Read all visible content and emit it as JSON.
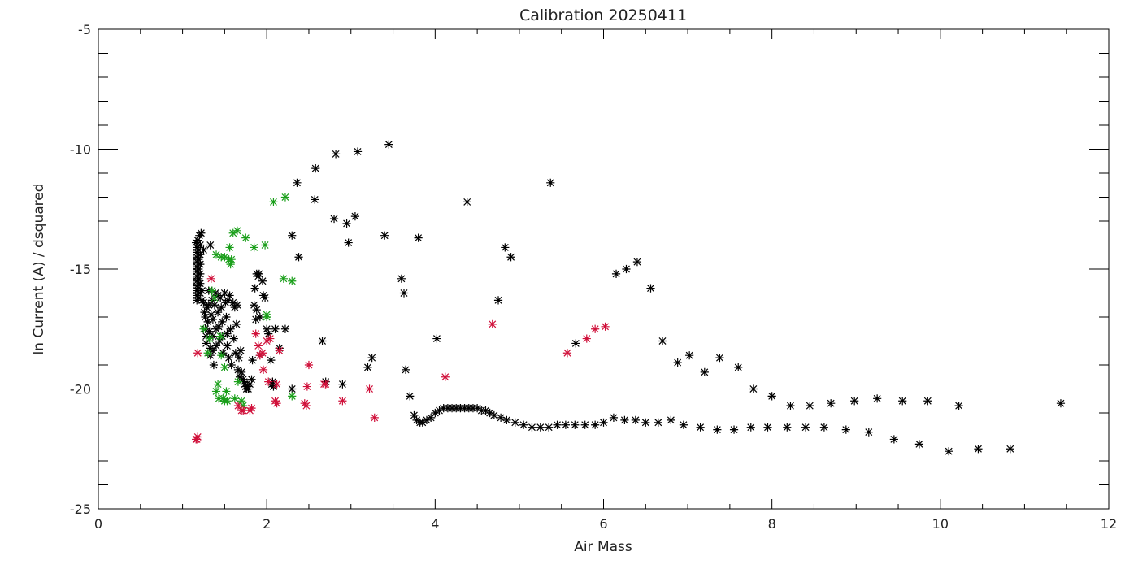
{
  "chart_data": {
    "type": "scatter",
    "title": "Calibration 20250411",
    "xlabel": "Air Mass",
    "ylabel": "ln Current (A) / dsquared",
    "xlim": [
      0,
      12
    ],
    "ylim": [
      -25,
      -5
    ],
    "x_ticks": [
      "0",
      "2",
      "4",
      "6",
      "8",
      "10",
      "12"
    ],
    "y_ticks": [
      "-25",
      "-20",
      "-15",
      "-10",
      "-5"
    ],
    "marker": "asterisk",
    "legend": "none",
    "colors": {
      "black": "#000000",
      "green": "#1a9f1a",
      "red": "#d0103a",
      "axes": "#000000"
    },
    "series": [
      {
        "color": "#000000",
        "points": [
          [
            1.16,
            -13.9
          ],
          [
            1.17,
            -14.1
          ],
          [
            1.17,
            -14.3
          ],
          [
            1.17,
            -14.5
          ],
          [
            1.17,
            -14.7
          ],
          [
            1.17,
            -14.9
          ],
          [
            1.17,
            -15.1
          ],
          [
            1.17,
            -15.3
          ],
          [
            1.17,
            -15.5
          ],
          [
            1.17,
            -15.7
          ],
          [
            1.17,
            -15.9
          ],
          [
            1.17,
            -16.1
          ],
          [
            1.17,
            -16.3
          ],
          [
            1.18,
            -13.8
          ],
          [
            1.19,
            -14.2
          ],
          [
            1.19,
            -14.6
          ],
          [
            1.19,
            -15.0
          ],
          [
            1.19,
            -15.4
          ],
          [
            1.19,
            -15.8
          ],
          [
            1.19,
            -16.2
          ],
          [
            1.2,
            -13.6
          ],
          [
            1.21,
            -14.0
          ],
          [
            1.21,
            -14.4
          ],
          [
            1.21,
            -14.8
          ],
          [
            1.21,
            -15.2
          ],
          [
            1.21,
            -15.6
          ],
          [
            1.21,
            -16.0
          ],
          [
            1.22,
            -13.5
          ],
          [
            1.23,
            -15.9
          ],
          [
            1.23,
            -16.3
          ],
          [
            1.25,
            -14.2
          ],
          [
            1.25,
            -16.4
          ],
          [
            1.26,
            -16.8
          ],
          [
            1.27,
            -17.0
          ],
          [
            1.27,
            -17.5
          ],
          [
            1.28,
            -17.8
          ],
          [
            1.28,
            -18.1
          ],
          [
            1.29,
            -16.6
          ],
          [
            1.3,
            -17.2
          ],
          [
            1.31,
            -15.9
          ],
          [
            1.31,
            -16.5
          ],
          [
            1.32,
            -17.6
          ],
          [
            1.33,
            -14.0
          ],
          [
            1.33,
            -18.3
          ],
          [
            1.33,
            -18.6
          ],
          [
            1.34,
            -16.9
          ],
          [
            1.35,
            -15.9
          ],
          [
            1.35,
            -16.3
          ],
          [
            1.36,
            -17.1
          ],
          [
            1.36,
            -17.8
          ],
          [
            1.36,
            -18.4
          ],
          [
            1.37,
            -19.0
          ],
          [
            1.38,
            -16.5
          ],
          [
            1.39,
            -16.0
          ],
          [
            1.4,
            -17.5
          ],
          [
            1.4,
            -18.2
          ],
          [
            1.42,
            -16.1
          ],
          [
            1.42,
            -16.8
          ],
          [
            1.43,
            -17.4
          ],
          [
            1.44,
            -18.0
          ],
          [
            1.45,
            -16.2
          ],
          [
            1.46,
            -16.6
          ],
          [
            1.47,
            -17.2
          ],
          [
            1.47,
            -17.8
          ],
          [
            1.48,
            -18.5
          ],
          [
            1.5,
            -16.0
          ],
          [
            1.51,
            -16.4
          ],
          [
            1.52,
            -17.0
          ],
          [
            1.53,
            -17.7
          ],
          [
            1.53,
            -18.2
          ],
          [
            1.54,
            -16.3
          ],
          [
            1.55,
            -18.7
          ],
          [
            1.56,
            -16.1
          ],
          [
            1.57,
            -17.5
          ],
          [
            1.58,
            -19.0
          ],
          [
            1.6,
            -16.4
          ],
          [
            1.61,
            -17.9
          ],
          [
            1.62,
            -16.6
          ],
          [
            1.63,
            -18.5
          ],
          [
            1.64,
            -17.3
          ],
          [
            1.65,
            -16.5
          ],
          [
            1.66,
            -19.2
          ],
          [
            1.67,
            -18.7
          ],
          [
            1.68,
            -19.5
          ],
          [
            1.69,
            -18.4
          ],
          [
            1.7,
            -19.3
          ],
          [
            1.72,
            -19.6
          ],
          [
            1.73,
            -19.7
          ],
          [
            1.74,
            -19.8
          ],
          [
            1.75,
            -19.9
          ],
          [
            1.76,
            -20.0
          ],
          [
            1.77,
            -19.9
          ],
          [
            1.78,
            -20.0
          ],
          [
            1.8,
            -19.8
          ],
          [
            1.82,
            -19.6
          ],
          [
            1.83,
            -18.8
          ],
          [
            1.85,
            -16.5
          ],
          [
            1.86,
            -15.8
          ],
          [
            1.87,
            -17.1
          ],
          [
            1.88,
            -16.7
          ],
          [
            1.88,
            -15.2
          ],
          [
            1.9,
            -15.3
          ],
          [
            1.91,
            -15.2
          ],
          [
            1.92,
            -17.0
          ],
          [
            1.92,
            -18.6
          ],
          [
            1.95,
            -15.5
          ],
          [
            1.96,
            -16.1
          ],
          [
            1.98,
            -16.2
          ],
          [
            2.0,
            -17.5
          ],
          [
            2.02,
            -17.7
          ],
          [
            2.05,
            -18.8
          ],
          [
            2.06,
            -19.8
          ],
          [
            2.07,
            -19.7
          ],
          [
            2.08,
            -19.9
          ],
          [
            2.1,
            -17.5
          ],
          [
            2.15,
            -18.3
          ],
          [
            2.22,
            -17.5
          ],
          [
            2.3,
            -13.6
          ],
          [
            2.3,
            -20.0
          ],
          [
            2.36,
            -11.4
          ],
          [
            2.38,
            -14.5
          ],
          [
            2.57,
            -12.1
          ],
          [
            2.58,
            -10.8
          ],
          [
            2.66,
            -18.0
          ],
          [
            2.7,
            -19.7
          ],
          [
            2.8,
            -12.9
          ],
          [
            2.82,
            -10.2
          ],
          [
            2.9,
            -19.8
          ],
          [
            2.95,
            -13.1
          ],
          [
            2.97,
            -13.9
          ],
          [
            3.05,
            -12.8
          ],
          [
            3.08,
            -10.1
          ],
          [
            3.2,
            -19.1
          ],
          [
            3.25,
            -18.7
          ],
          [
            3.4,
            -13.6
          ],
          [
            3.45,
            -9.8
          ],
          [
            3.6,
            -15.4
          ],
          [
            3.63,
            -16.0
          ],
          [
            3.65,
            -19.2
          ],
          [
            3.7,
            -20.3
          ],
          [
            3.75,
            -21.1
          ],
          [
            3.78,
            -21.3
          ],
          [
            3.8,
            -13.7
          ],
          [
            3.82,
            -21.4
          ],
          [
            3.85,
            -21.4
          ],
          [
            3.9,
            -21.3
          ],
          [
            3.95,
            -21.2
          ],
          [
            4.0,
            -21.0
          ],
          [
            4.02,
            -17.9
          ],
          [
            4.05,
            -20.9
          ],
          [
            4.1,
            -20.8
          ],
          [
            4.15,
            -20.8
          ],
          [
            4.2,
            -20.8
          ],
          [
            4.25,
            -20.8
          ],
          [
            4.3,
            -20.8
          ],
          [
            4.35,
            -20.8
          ],
          [
            4.38,
            -12.2
          ],
          [
            4.4,
            -20.8
          ],
          [
            4.45,
            -20.8
          ],
          [
            4.5,
            -20.8
          ],
          [
            4.55,
            -20.9
          ],
          [
            4.6,
            -20.9
          ],
          [
            4.65,
            -21.0
          ],
          [
            4.7,
            -21.1
          ],
          [
            4.75,
            -16.3
          ],
          [
            4.78,
            -21.2
          ],
          [
            4.83,
            -14.1
          ],
          [
            4.85,
            -21.3
          ],
          [
            4.9,
            -14.5
          ],
          [
            4.95,
            -21.4
          ],
          [
            5.05,
            -21.5
          ],
          [
            5.15,
            -21.6
          ],
          [
            5.25,
            -21.6
          ],
          [
            5.35,
            -21.6
          ],
          [
            5.37,
            -11.4
          ],
          [
            5.45,
            -21.5
          ],
          [
            5.55,
            -21.5
          ],
          [
            5.66,
            -21.5
          ],
          [
            5.67,
            -18.1
          ],
          [
            5.78,
            -21.5
          ],
          [
            5.9,
            -21.5
          ],
          [
            6.0,
            -21.4
          ],
          [
            6.12,
            -21.2
          ],
          [
            6.15,
            -15.2
          ],
          [
            6.25,
            -21.3
          ],
          [
            6.27,
            -15.0
          ],
          [
            6.38,
            -21.3
          ],
          [
            6.4,
            -14.7
          ],
          [
            6.5,
            -21.4
          ],
          [
            6.56,
            -15.8
          ],
          [
            6.65,
            -21.4
          ],
          [
            6.7,
            -18.0
          ],
          [
            6.8,
            -21.3
          ],
          [
            6.88,
            -18.9
          ],
          [
            6.95,
            -21.5
          ],
          [
            7.02,
            -18.6
          ],
          [
            7.15,
            -21.6
          ],
          [
            7.2,
            -19.3
          ],
          [
            7.35,
            -21.7
          ],
          [
            7.38,
            -18.7
          ],
          [
            7.55,
            -21.7
          ],
          [
            7.6,
            -19.1
          ],
          [
            7.75,
            -21.6
          ],
          [
            7.78,
            -20.0
          ],
          [
            7.95,
            -21.6
          ],
          [
            8.0,
            -20.3
          ],
          [
            8.18,
            -21.6
          ],
          [
            8.22,
            -20.7
          ],
          [
            8.4,
            -21.6
          ],
          [
            8.45,
            -20.7
          ],
          [
            8.62,
            -21.6
          ],
          [
            8.7,
            -20.6
          ],
          [
            8.88,
            -21.7
          ],
          [
            8.98,
            -20.5
          ],
          [
            9.15,
            -21.8
          ],
          [
            9.25,
            -20.4
          ],
          [
            9.45,
            -22.1
          ],
          [
            9.55,
            -20.5
          ],
          [
            9.75,
            -22.3
          ],
          [
            9.85,
            -20.5
          ],
          [
            10.1,
            -22.6
          ],
          [
            10.22,
            -20.7
          ],
          [
            10.45,
            -22.5
          ],
          [
            10.83,
            -22.5
          ],
          [
            11.43,
            -20.6
          ]
        ]
      },
      {
        "color": "#1a9f1a",
        "points": [
          [
            1.25,
            -17.5
          ],
          [
            1.3,
            -18.5
          ],
          [
            1.32,
            -17.9
          ],
          [
            1.35,
            -15.9
          ],
          [
            1.38,
            -16.2
          ],
          [
            1.4,
            -14.4
          ],
          [
            1.4,
            -20.1
          ],
          [
            1.42,
            -19.8
          ],
          [
            1.43,
            -20.4
          ],
          [
            1.45,
            -17.8
          ],
          [
            1.46,
            -18.6
          ],
          [
            1.46,
            -14.5
          ],
          [
            1.48,
            -20.4
          ],
          [
            1.5,
            -20.5
          ],
          [
            1.5,
            -14.5
          ],
          [
            1.5,
            -19.1
          ],
          [
            1.52,
            -20.1
          ],
          [
            1.53,
            -20.5
          ],
          [
            1.55,
            -14.6
          ],
          [
            1.56,
            -14.1
          ],
          [
            1.57,
            -14.8
          ],
          [
            1.58,
            -14.6
          ],
          [
            1.6,
            -13.5
          ],
          [
            1.62,
            -20.4
          ],
          [
            1.65,
            -13.4
          ],
          [
            1.66,
            -19.7
          ],
          [
            1.7,
            -20.5
          ],
          [
            1.72,
            -20.7
          ],
          [
            1.75,
            -13.7
          ],
          [
            1.85,
            -14.1
          ],
          [
            1.98,
            -14.0
          ],
          [
            2.0,
            -17.0
          ],
          [
            2.0,
            -16.9
          ],
          [
            2.08,
            -12.2
          ],
          [
            2.2,
            -15.4
          ],
          [
            2.22,
            -12.0
          ],
          [
            2.3,
            -15.5
          ],
          [
            2.3,
            -20.3
          ]
        ]
      },
      {
        "color": "#d0103a",
        "points": [
          [
            1.16,
            -22.1
          ],
          [
            1.17,
            -22.1
          ],
          [
            1.18,
            -22.0
          ],
          [
            1.18,
            -18.5
          ],
          [
            1.34,
            -15.4
          ],
          [
            1.66,
            -20.7
          ],
          [
            1.7,
            -20.9
          ],
          [
            1.72,
            -20.9
          ],
          [
            1.8,
            -20.9
          ],
          [
            1.82,
            -20.8
          ],
          [
            1.87,
            -17.7
          ],
          [
            1.9,
            -18.2
          ],
          [
            1.92,
            -18.6
          ],
          [
            1.95,
            -18.5
          ],
          [
            1.96,
            -19.2
          ],
          [
            2.0,
            -18.0
          ],
          [
            2.02,
            -19.7
          ],
          [
            2.04,
            -17.9
          ],
          [
            2.1,
            -20.5
          ],
          [
            2.12,
            -20.6
          ],
          [
            2.12,
            -19.8
          ],
          [
            2.15,
            -18.4
          ],
          [
            2.45,
            -20.6
          ],
          [
            2.47,
            -20.7
          ],
          [
            2.48,
            -19.9
          ],
          [
            2.5,
            -19.0
          ],
          [
            2.68,
            -19.8
          ],
          [
            2.7,
            -19.8
          ],
          [
            2.9,
            -20.5
          ],
          [
            3.22,
            -20.0
          ],
          [
            3.28,
            -21.2
          ],
          [
            4.12,
            -19.5
          ],
          [
            4.68,
            -17.3
          ],
          [
            5.57,
            -18.5
          ],
          [
            5.8,
            -17.9
          ],
          [
            5.9,
            -17.5
          ],
          [
            6.02,
            -17.4
          ]
        ]
      }
    ]
  }
}
